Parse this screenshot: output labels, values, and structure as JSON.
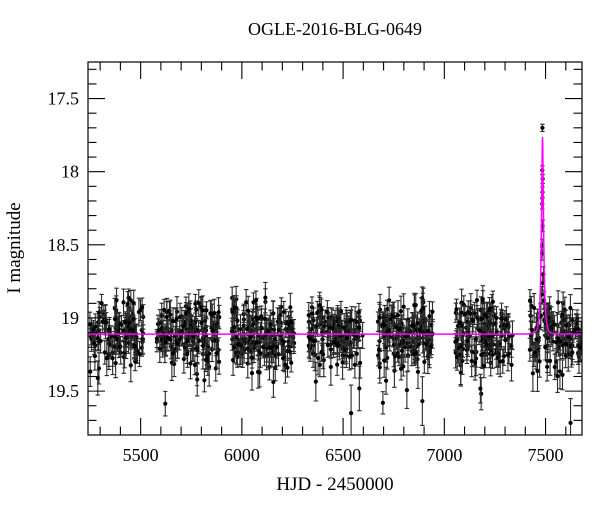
{
  "chart_data": {
    "type": "scatter",
    "title": "OGLE-2016-BLG-0649",
    "xlabel": "HJD - 2450000",
    "ylabel": "I magnitude",
    "xlim": [
      5240,
      7680
    ],
    "ylim_mag_top_to_bottom": [
      17.25,
      19.8
    ],
    "y_axis_inverted": true,
    "grid": false,
    "legend": "none",
    "ticks": {
      "x_major": [
        5500,
        6000,
        6500,
        7000,
        7500
      ],
      "x_labels": [
        "5500",
        "6000",
        "6500",
        "7000",
        "7500"
      ],
      "x_minor_step": 100,
      "y_major": [
        17.5,
        18.0,
        18.5,
        19.0,
        19.5
      ],
      "y_labels": [
        "17.5",
        "18",
        "18.5",
        "19",
        "19.5"
      ],
      "y_minor_step": 0.1
    },
    "colors": {
      "data_point": "#000000",
      "error_bar": "#2b2b2b",
      "model_curve": "#ff00ff",
      "frame": "#000000",
      "background": "#ffffff"
    },
    "baseline_mag": 19.11,
    "scatter_sigma": 0.11,
    "outlier_fraction": 0.03,
    "model": {
      "shape": "paczynski",
      "t0": 7485,
      "tE": 11,
      "u0": 0.3,
      "baseline_mag": 19.11,
      "peak_mag": 17.77
    },
    "seasons": [
      {
        "start": 5248,
        "end": 5515,
        "n": 120
      },
      {
        "start": 5580,
        "end": 5890,
        "n": 150
      },
      {
        "start": 5950,
        "end": 6258,
        "n": 160
      },
      {
        "start": 6328,
        "end": 6598,
        "n": 130
      },
      {
        "start": 6672,
        "end": 6943,
        "n": 135
      },
      {
        "start": 7052,
        "end": 7337,
        "n": 140
      },
      {
        "start": 7421,
        "end": 7478,
        "n": 26
      },
      {
        "start": 7492,
        "end": 7676,
        "n": 85
      }
    ],
    "peak_points": [
      {
        "x": 7484.5,
        "mag": 17.7,
        "err": 0.025
      },
      {
        "x": 7484.0,
        "mag": 17.99,
        "err": 0.03
      },
      {
        "x": 7485.5,
        "mag": 18.05,
        "err": 0.03
      },
      {
        "x": 7484.8,
        "mag": 18.14,
        "err": 0.035
      },
      {
        "x": 7483.6,
        "mag": 18.22,
        "err": 0.035
      },
      {
        "x": 7485.3,
        "mag": 18.37,
        "err": 0.04
      },
      {
        "x": 7483.2,
        "mag": 18.5,
        "err": 0.04
      },
      {
        "x": 7482.6,
        "mag": 18.56,
        "err": 0.045
      },
      {
        "x": 7485.8,
        "mag": 18.76,
        "err": 0.05
      },
      {
        "x": 7481.3,
        "mag": 18.84,
        "err": 0.055
      },
      {
        "x": 7489.5,
        "mag": 18.7,
        "err": 0.05
      },
      {
        "x": 7492.5,
        "mag": 18.88,
        "err": 0.06
      },
      {
        "x": 7495.5,
        "mag": 18.97,
        "err": 0.06
      }
    ],
    "random_seed": 7
  }
}
